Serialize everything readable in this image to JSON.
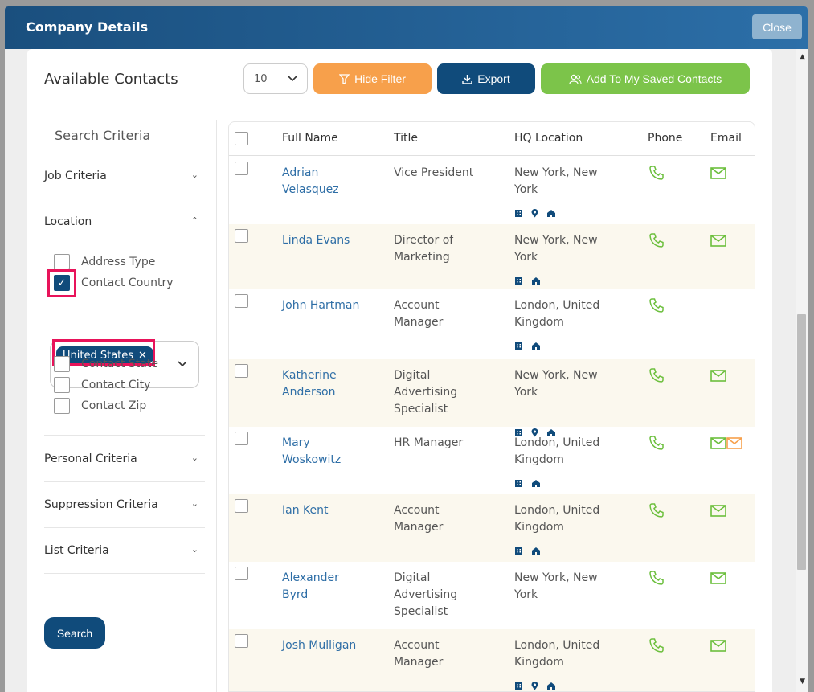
{
  "modal": {
    "title": "Company Details",
    "close_label": "Close"
  },
  "card": {
    "title": "Available Contacts",
    "per_page": "10",
    "hide_filter_label": "Hide Filter",
    "export_label": "Export",
    "add_label": "Add To My Saved Contacts"
  },
  "filters": {
    "heading": "Search Criteria",
    "job_criteria": "Job Criteria",
    "location": "Location",
    "address_type": "Address Type",
    "contact_country": "Contact Country",
    "country_tag": "United States",
    "contact_state": "Contact State",
    "contact_city": "Contact City",
    "contact_zip": "Contact Zip",
    "personal_criteria": "Personal Criteria",
    "suppression_criteria": "Suppression Criteria",
    "list_criteria": "List Criteria",
    "search_label": "Search"
  },
  "table": {
    "headers": {
      "name": "Full Name",
      "title": "Title",
      "location": "HQ Location",
      "phone": "Phone",
      "email": "Email"
    },
    "rows": [
      {
        "name1": "Adrian",
        "name2": "Velasquez",
        "title1": "Vice President",
        "title2": "",
        "title3": "",
        "loc1": "New York, New",
        "loc2": "York"
      },
      {
        "name1": "Linda Evans",
        "name2": "",
        "title1": "Director of",
        "title2": "Marketing",
        "title3": "",
        "loc1": "New York, New",
        "loc2": "York"
      },
      {
        "name1": "John Hartman",
        "name2": "",
        "title1": "Account",
        "title2": "Manager",
        "title3": "",
        "loc1": "London, United",
        "loc2": "Kingdom"
      },
      {
        "name1": "Katherine",
        "name2": "Anderson",
        "title1": "Digital",
        "title2": "Advertising",
        "title3": "Specialist",
        "loc1": "New York, New",
        "loc2": "York"
      },
      {
        "name1": "Mary",
        "name2": "Woskowitz",
        "title1": "HR Manager",
        "title2": "",
        "title3": "",
        "loc1": "London, United",
        "loc2": "Kingdom"
      },
      {
        "name1": "Ian Kent",
        "name2": "",
        "title1": "Account",
        "title2": "Manager",
        "title3": "",
        "loc1": "London, United",
        "loc2": "Kingdom"
      },
      {
        "name1": "Alexander",
        "name2": "Byrd",
        "title1": "Digital",
        "title2": "Advertising",
        "title3": "Specialist",
        "loc1": "New York, New",
        "loc2": "York"
      },
      {
        "name1": "Josh Mulligan",
        "name2": "",
        "title1": "Account",
        "title2": "Manager",
        "title3": "",
        "loc1": "London, United",
        "loc2": "Kingdom"
      }
    ]
  },
  "colors": {
    "primary": "#104b7b",
    "orange": "#f7a04b",
    "green": "#7cc44a",
    "highlight": "#e8135a"
  }
}
